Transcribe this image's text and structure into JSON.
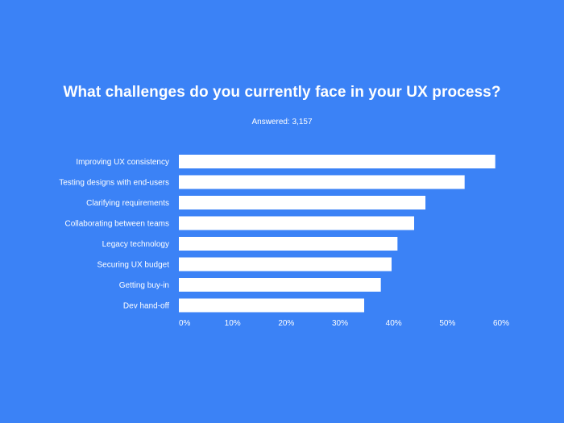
{
  "chart_data": {
    "type": "bar",
    "orientation": "horizontal",
    "title": "What challenges do you currently face in your UX process?",
    "subtitle": "Answered: 3,157",
    "categories": [
      "Improving UX consistency",
      "Testing designs with end-users",
      "Clarifying requirements",
      "Collaborating between teams",
      "Legacy technology",
      "Securing UX budget",
      "Getting buy-in",
      "Dev hand-off"
    ],
    "values": [
      58.9,
      53.2,
      45.9,
      43.8,
      40.7,
      39.6,
      37.6,
      34.5
    ],
    "x_ticks": [
      "0%",
      "10%",
      "20%",
      "30%",
      "40%",
      "50%",
      "60%"
    ],
    "xlim": [
      0,
      60
    ],
    "grid": false,
    "legend": "none",
    "colors": {
      "background": "#3B82F6",
      "bar": "#FFFFFF",
      "text": "#FFFFFF"
    }
  }
}
